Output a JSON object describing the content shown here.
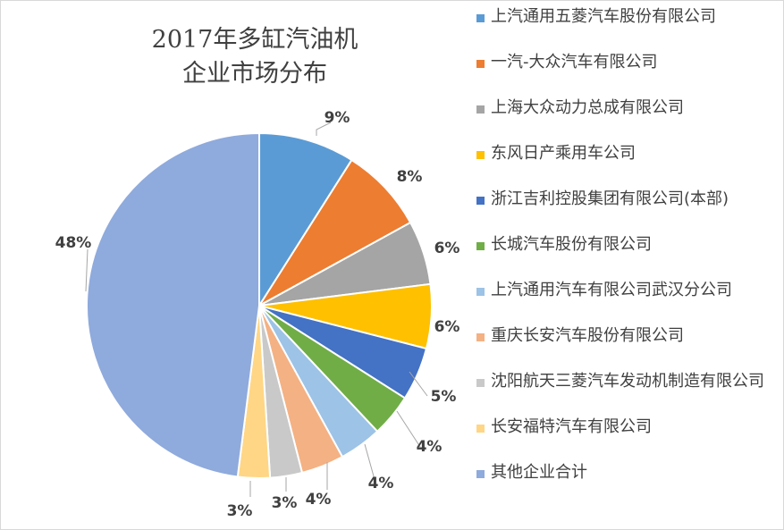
{
  "chart_data": {
    "type": "pie",
    "title_lines": [
      "2017年多缸汽油机",
      "企业市场分布"
    ],
    "legend_position": "right",
    "series": [
      {
        "name": "上汽通用五菱汽车股份有限公司",
        "value": 9,
        "label": "9%",
        "color": "#5B9BD5"
      },
      {
        "name": "一汽-大众汽车有限公司",
        "value": 8,
        "label": "8%",
        "color": "#ED7D31"
      },
      {
        "name": "上海大众动力总成有限公司",
        "value": 6,
        "label": "6%",
        "color": "#A5A5A5"
      },
      {
        "name": "东风日产乘用车公司",
        "value": 6,
        "label": "6%",
        "color": "#FFC000"
      },
      {
        "name": "浙江吉利控股集团有限公司(本部)",
        "value": 5,
        "label": "5%",
        "color": "#4472C4"
      },
      {
        "name": "长城汽车股份有限公司",
        "value": 4,
        "label": "4%",
        "color": "#70AD47"
      },
      {
        "name": "上汽通用汽车有限公司武汉分公司",
        "value": 4,
        "label": "4%",
        "color": "#9DC3E6"
      },
      {
        "name": "重庆长安汽车股份有限公司",
        "value": 4,
        "label": "4%",
        "color": "#F4B183"
      },
      {
        "name": "沈阳航天三菱汽车发动机制造有限公司",
        "value": 3,
        "label": "3%",
        "color": "#C9C9C9"
      },
      {
        "name": "长安福特汽车有限公司",
        "value": 3,
        "label": "3%",
        "color": "#FFD685"
      },
      {
        "name": "其他企业合计",
        "value": 48,
        "label": "48%",
        "color": "#8FAADC"
      }
    ]
  }
}
